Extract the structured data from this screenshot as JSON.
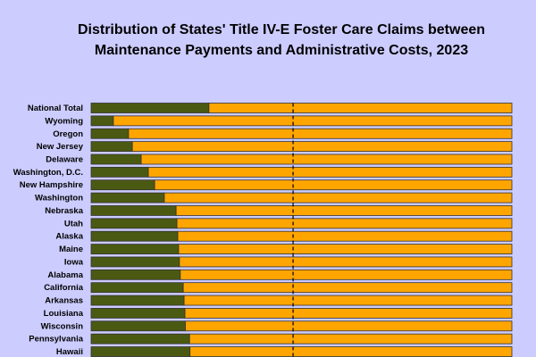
{
  "chart_data": {
    "type": "stacked-bar-horizontal",
    "title": [
      "Distribution of States' Title IV-E Foster Care Claims between",
      "Maintenance Payments and Administrative Costs, 2023"
    ],
    "categories": [
      "National Total",
      "Wyoming",
      "Oregon",
      "New Jersey",
      "Delaware",
      "Washington, D.C.",
      "New Hampshire",
      "Washington",
      "Nebraska",
      "Utah",
      "Alaska",
      "Maine",
      "Iowa",
      "Alabama",
      "California",
      "Arkansas",
      "Louisiana",
      "Wisconsin",
      "Pennsylvania",
      "Hawaii"
    ],
    "series": [
      {
        "color": "#4b5a12",
        "values": [
          28.0,
          5.3,
          8.9,
          9.8,
          11.9,
          13.6,
          15.1,
          17.4,
          20.2,
          20.4,
          20.6,
          20.8,
          21.0,
          21.2,
          21.9,
          22.1,
          22.3,
          22.4,
          23.4,
          23.5
        ]
      },
      {
        "color": "#ffa500",
        "values": [
          72.0,
          94.7,
          91.1,
          90.2,
          88.1,
          86.4,
          84.9,
          82.6,
          79.8,
          79.6,
          79.4,
          79.2,
          79.0,
          78.8,
          78.1,
          77.9,
          77.7,
          77.6,
          76.6,
          76.5
        ]
      }
    ],
    "xlim": [
      0,
      100
    ],
    "reference_line": 48
  }
}
